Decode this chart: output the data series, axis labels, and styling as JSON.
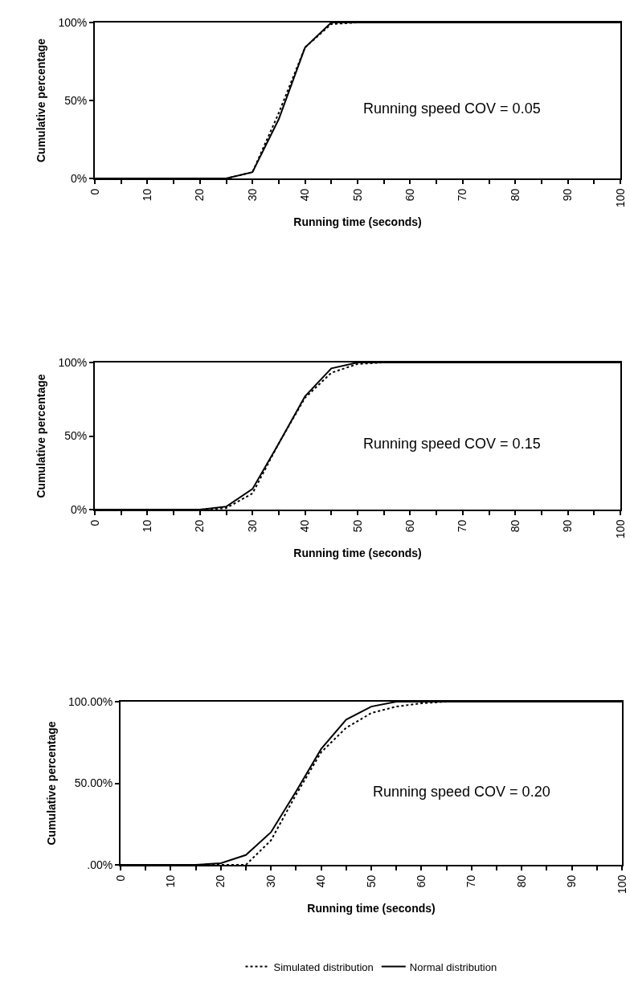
{
  "chart_data": [
    {
      "type": "line",
      "xlabel": "Running time (seconds)",
      "ylabel": "Cumulative percentage",
      "annotations": [
        "Running speed COV = 0.05"
      ],
      "x": [
        0,
        5,
        10,
        15,
        20,
        25,
        30,
        35,
        40,
        45,
        50,
        55,
        60,
        65,
        70,
        75,
        80,
        85,
        90,
        95,
        100
      ],
      "xlim": [
        0,
        100
      ],
      "xticks": [
        0,
        {
          "value": 5,
          "label": null
        },
        10,
        {
          "value": 15,
          "label": null
        },
        20,
        {
          "value": 25,
          "label": null
        },
        30,
        {
          "value": 35,
          "label": null
        },
        40,
        {
          "value": 45,
          "label": null
        },
        50,
        {
          "value": 55,
          "label": null
        },
        60,
        {
          "value": 65,
          "label": null
        },
        70,
        {
          "value": 75,
          "label": null
        },
        80,
        {
          "value": 85,
          "label": null
        },
        90,
        {
          "value": 95,
          "label": null
        },
        100
      ],
      "ylim": [
        0,
        1
      ],
      "yticks": [
        {
          "value": 0,
          "label": "0%"
        },
        {
          "value": 0.5,
          "label": "50%"
        },
        {
          "value": 1,
          "label": "100%"
        }
      ],
      "grid": false,
      "legend": false,
      "marker": "none",
      "series": [
        {
          "color": "#000000",
          "line_style": "dotted",
          "values": [
            0,
            0,
            0,
            0,
            0,
            0,
            0.04,
            0.42,
            0.84,
            0.99,
            1,
            1,
            1,
            1,
            1,
            1,
            1,
            1,
            1,
            1,
            1
          ]
        },
        {
          "color": "#000000",
          "line_style": "solid",
          "values": [
            0,
            0,
            0,
            0,
            0,
            0,
            0.04,
            0.38,
            0.84,
            1,
            1,
            1,
            1,
            1,
            1,
            1,
            1,
            1,
            1,
            1,
            1
          ]
        }
      ]
    },
    {
      "type": "line",
      "xlabel": "Running time (seconds)",
      "ylabel": "Cumulative percentage",
      "annotations": [
        "Running speed COV = 0.15"
      ],
      "x": [
        0,
        5,
        10,
        15,
        20,
        25,
        30,
        35,
        40,
        45,
        50,
        55,
        60,
        65,
        70,
        75,
        80,
        85,
        90,
        95,
        100
      ],
      "xlim": [
        0,
        100
      ],
      "xticks": [
        0,
        {
          "value": 5,
          "label": null
        },
        10,
        {
          "value": 15,
          "label": null
        },
        20,
        {
          "value": 25,
          "label": null
        },
        30,
        {
          "value": 35,
          "label": null
        },
        40,
        {
          "value": 45,
          "label": null
        },
        50,
        {
          "value": 55,
          "label": null
        },
        60,
        {
          "value": 65,
          "label": null
        },
        70,
        {
          "value": 75,
          "label": null
        },
        80,
        {
          "value": 85,
          "label": null
        },
        90,
        {
          "value": 95,
          "label": null
        },
        100
      ],
      "ylim": [
        0,
        1
      ],
      "yticks": [
        {
          "value": 0,
          "label": "0%"
        },
        {
          "value": 0.5,
          "label": "50%"
        },
        {
          "value": 1,
          "label": "100%"
        }
      ],
      "grid": false,
      "legend": false,
      "marker": "none",
      "series": [
        {
          "color": "#000000",
          "line_style": "dotted",
          "values": [
            0,
            0,
            0,
            0,
            0,
            0.01,
            0.11,
            0.45,
            0.76,
            0.93,
            0.99,
            1,
            1,
            1,
            1,
            1,
            1,
            1,
            1,
            1,
            1
          ]
        },
        {
          "color": "#000000",
          "line_style": "solid",
          "values": [
            0,
            0,
            0,
            0,
            0,
            0.02,
            0.14,
            0.45,
            0.77,
            0.96,
            1,
            1,
            1,
            1,
            1,
            1,
            1,
            1,
            1,
            1,
            1
          ]
        }
      ]
    },
    {
      "type": "line",
      "xlabel": "Running time (seconds)",
      "ylabel": "Cumulative percentage",
      "annotations": [
        "Running speed COV = 0.20"
      ],
      "x": [
        0,
        5,
        10,
        15,
        20,
        25,
        30,
        35,
        40,
        45,
        50,
        55,
        60,
        65,
        70,
        75,
        80,
        85,
        90,
        95,
        100
      ],
      "xlim": [
        0,
        100
      ],
      "xticks": [
        0,
        {
          "value": 5,
          "label": null
        },
        10,
        {
          "value": 15,
          "label": null
        },
        20,
        {
          "value": 25,
          "label": null
        },
        30,
        {
          "value": 35,
          "label": null
        },
        40,
        {
          "value": 45,
          "label": null
        },
        50,
        {
          "value": 55,
          "label": null
        },
        60,
        {
          "value": 65,
          "label": null
        },
        70,
        {
          "value": 75,
          "label": null
        },
        80,
        {
          "value": 85,
          "label": null
        },
        90,
        {
          "value": 95,
          "label": null
        },
        100
      ],
      "ylim": [
        0,
        1
      ],
      "yticks": [
        {
          "value": 0,
          "label": ".00%"
        },
        {
          "value": 0.5,
          "label": "50.00%"
        },
        {
          "value": 1,
          "label": "100.00%"
        }
      ],
      "grid": false,
      "legend": "bottom",
      "marker": "none",
      "series": [
        {
          "name": "Simulated distribution",
          "color": "#000000",
          "line_style": "dotted",
          "values": [
            0,
            0,
            0,
            0,
            0,
            0,
            0.15,
            0.43,
            0.69,
            0.84,
            0.93,
            0.97,
            0.99,
            1,
            1,
            1,
            1,
            1,
            1,
            1,
            1
          ]
        },
        {
          "name": "Normal distribution",
          "color": "#000000",
          "line_style": "solid",
          "values": [
            0,
            0,
            0,
            0,
            0.01,
            0.06,
            0.2,
            0.45,
            0.71,
            0.89,
            0.97,
            1,
            1,
            1,
            1,
            1,
            1,
            1,
            1,
            1,
            1
          ]
        }
      ]
    }
  ]
}
